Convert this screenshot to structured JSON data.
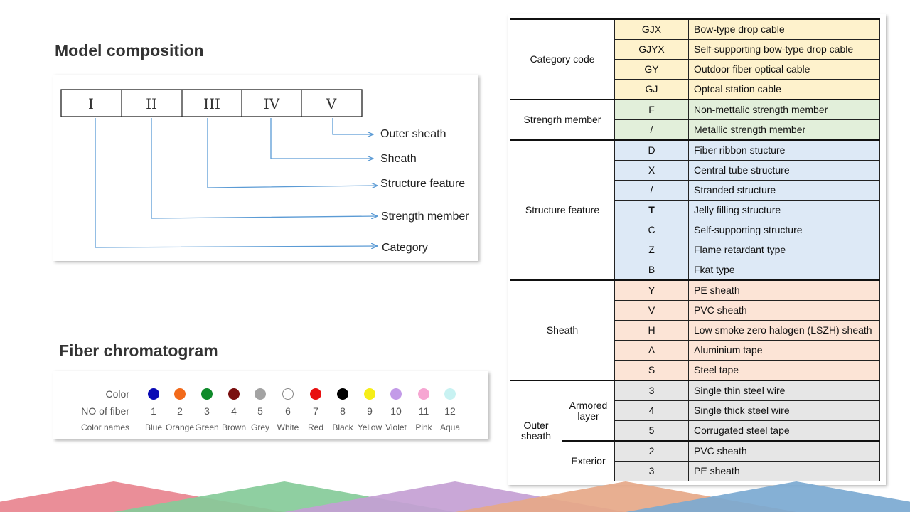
{
  "model_composition": {
    "title": "Model composition",
    "positions": [
      "I",
      "II",
      "III",
      "IV",
      "V"
    ],
    "labels": [
      "Outer sheath",
      "Sheath",
      "Structure feature",
      "Strength member",
      "Category"
    ]
  },
  "fiber_chromatogram": {
    "title": "Fiber chromatogram",
    "row_labels": {
      "color": "Color",
      "number": "NO of fiber",
      "names": "Color names"
    },
    "fibers": [
      {
        "no": "1",
        "name": "Blue",
        "color": "#0a0ab5"
      },
      {
        "no": "2",
        "name": "Orange",
        "color": "#f26a1b"
      },
      {
        "no": "3",
        "name": "Green",
        "color": "#0f8a2a"
      },
      {
        "no": "4",
        "name": "Brown",
        "color": "#7a0f0f"
      },
      {
        "no": "5",
        "name": "Grey",
        "color": "#a3a3a3"
      },
      {
        "no": "6",
        "name": "White",
        "color": "#ffffff"
      },
      {
        "no": "7",
        "name": "Red",
        "color": "#e81010"
      },
      {
        "no": "8",
        "name": "Black",
        "color": "#000000"
      },
      {
        "no": "9",
        "name": "Yellow",
        "color": "#f6ee18"
      },
      {
        "no": "10",
        "name": "Violet",
        "color": "#c39be8"
      },
      {
        "no": "11",
        "name": "Pink",
        "color": "#f6a6d2"
      },
      {
        "no": "12",
        "name": "Aqua",
        "color": "#c8f2f2"
      }
    ]
  },
  "code_table": {
    "category_code": {
      "label": "Category code",
      "rows": [
        {
          "code": "GJX",
          "desc": "Bow-type drop cable"
        },
        {
          "code": "GJYX",
          "desc": "Self-supporting bow-type drop cable"
        },
        {
          "code": "GY",
          "desc": "Outdoor fiber optical cable"
        },
        {
          "code": "GJ",
          "desc": "Optcal station cable"
        }
      ]
    },
    "strength_member": {
      "label": "Strengrh member",
      "rows": [
        {
          "code": "F",
          "desc": "Non-mettalic strength member"
        },
        {
          "code": "/",
          "desc": "Metallic strength member"
        }
      ]
    },
    "structure_feature": {
      "label": "Structure feature",
      "rows": [
        {
          "code": "D",
          "desc": "Fiber ribbon stucture"
        },
        {
          "code": "X",
          "desc": "Central tube structure"
        },
        {
          "code": "/",
          "desc": "Stranded structure"
        },
        {
          "code": "T",
          "desc": "Jelly filling structure"
        },
        {
          "code": "C",
          "desc": "Self-supporting structure"
        },
        {
          "code": "Z",
          "desc": "Flame retardant type"
        },
        {
          "code": "B",
          "desc": "Fkat type"
        }
      ]
    },
    "sheath": {
      "label": "Sheath",
      "rows": [
        {
          "code": "Y",
          "desc": "PE sheath"
        },
        {
          "code": "V",
          "desc": "PVC sheath"
        },
        {
          "code": "H",
          "desc": "Low smoke zero halogen (LSZH) sheath"
        },
        {
          "code": "A",
          "desc": "Aluminium tape"
        },
        {
          "code": "S",
          "desc": "Steel tape"
        }
      ]
    },
    "outer_sheath": {
      "label_line1": "Outer",
      "label_line2": "sheath",
      "armored_line1": "Armored",
      "armored_line2": "layer",
      "armored_rows": [
        {
          "code": "3",
          "desc": "Single thin steel wire"
        },
        {
          "code": "4",
          "desc": "Single thick steel wire"
        },
        {
          "code": "5",
          "desc": "Corrugated steel tape"
        }
      ],
      "exterior_label": "Exterior",
      "exterior_rows": [
        {
          "code": "2",
          "desc": "PVC sheath"
        },
        {
          "code": "3",
          "desc": "PE sheath"
        }
      ]
    }
  },
  "decoration": {
    "triangle_colors": [
      "#e8848f",
      "#86cb99",
      "#c49fd4",
      "#e6a888",
      "#7ba9d1"
    ]
  }
}
